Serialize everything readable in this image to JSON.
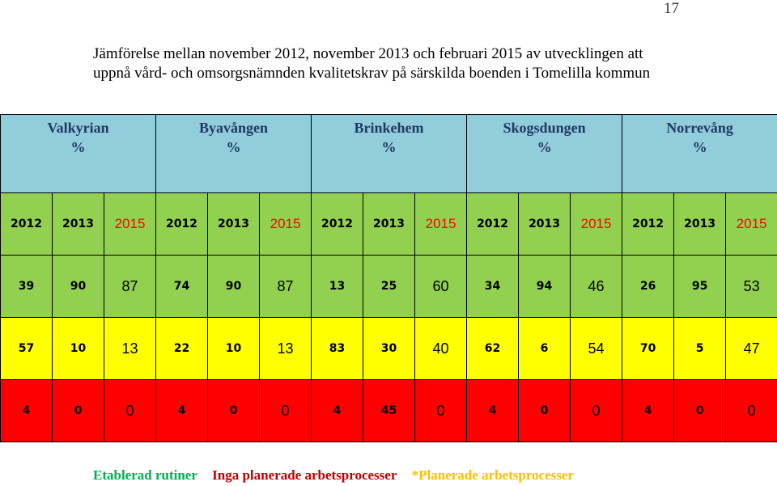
{
  "page_number": "17",
  "title": "Jämförelse mellan november 2012, november 2013 och februari 2015 av utvecklingen att uppnå vård- och omsorgsnämnden kvalitetskrav på särskilda boenden i Tomelilla kommun",
  "units": [
    {
      "name": "Valkyrian",
      "unit": "%",
      "years": [
        "2012",
        "2013",
        "2015"
      ],
      "green": [
        "39",
        "90",
        "87"
      ],
      "yellow": [
        "57",
        "10",
        "13"
      ],
      "red": [
        "4",
        "0",
        "0"
      ]
    },
    {
      "name": "Byavången",
      "unit": "%",
      "years": [
        "2012",
        "2013",
        "2015"
      ],
      "green": [
        "74",
        "90",
        "87"
      ],
      "yellow": [
        "22",
        "10",
        "13"
      ],
      "red": [
        "4",
        "0",
        "0"
      ]
    },
    {
      "name": "Brinkehem",
      "unit": "%",
      "years": [
        "2012",
        "2013",
        "2015"
      ],
      "green": [
        "13",
        "25",
        "60"
      ],
      "yellow": [
        "83",
        "30",
        "40"
      ],
      "red": [
        "4",
        "45",
        "0"
      ]
    },
    {
      "name": "Skogsdungen",
      "unit": "%",
      "years": [
        "2012",
        "2013",
        "2015"
      ],
      "green": [
        "34",
        "94",
        "46"
      ],
      "yellow": [
        "62",
        "6",
        "54"
      ],
      "red": [
        "4",
        "0",
        "0"
      ]
    },
    {
      "name": "Norrevång",
      "unit": "%",
      "years": [
        "2012",
        "2013",
        "2015"
      ],
      "green": [
        "26",
        "95",
        "53"
      ],
      "yellow": [
        "70",
        "5",
        "47"
      ],
      "red": [
        "4",
        "0",
        "0"
      ]
    }
  ],
  "legend": {
    "green": "Etablerad rutiner",
    "red": "Inga planerade arbetsprocesser",
    "yellow": "*Planerade arbetsprocesser"
  },
  "colors": {
    "header_bg": "#92cddc",
    "green_bg": "#92d050",
    "yellow_bg": "#ffff00",
    "red_bg": "#ff0000",
    "year_2015_text": "#ff0000"
  }
}
